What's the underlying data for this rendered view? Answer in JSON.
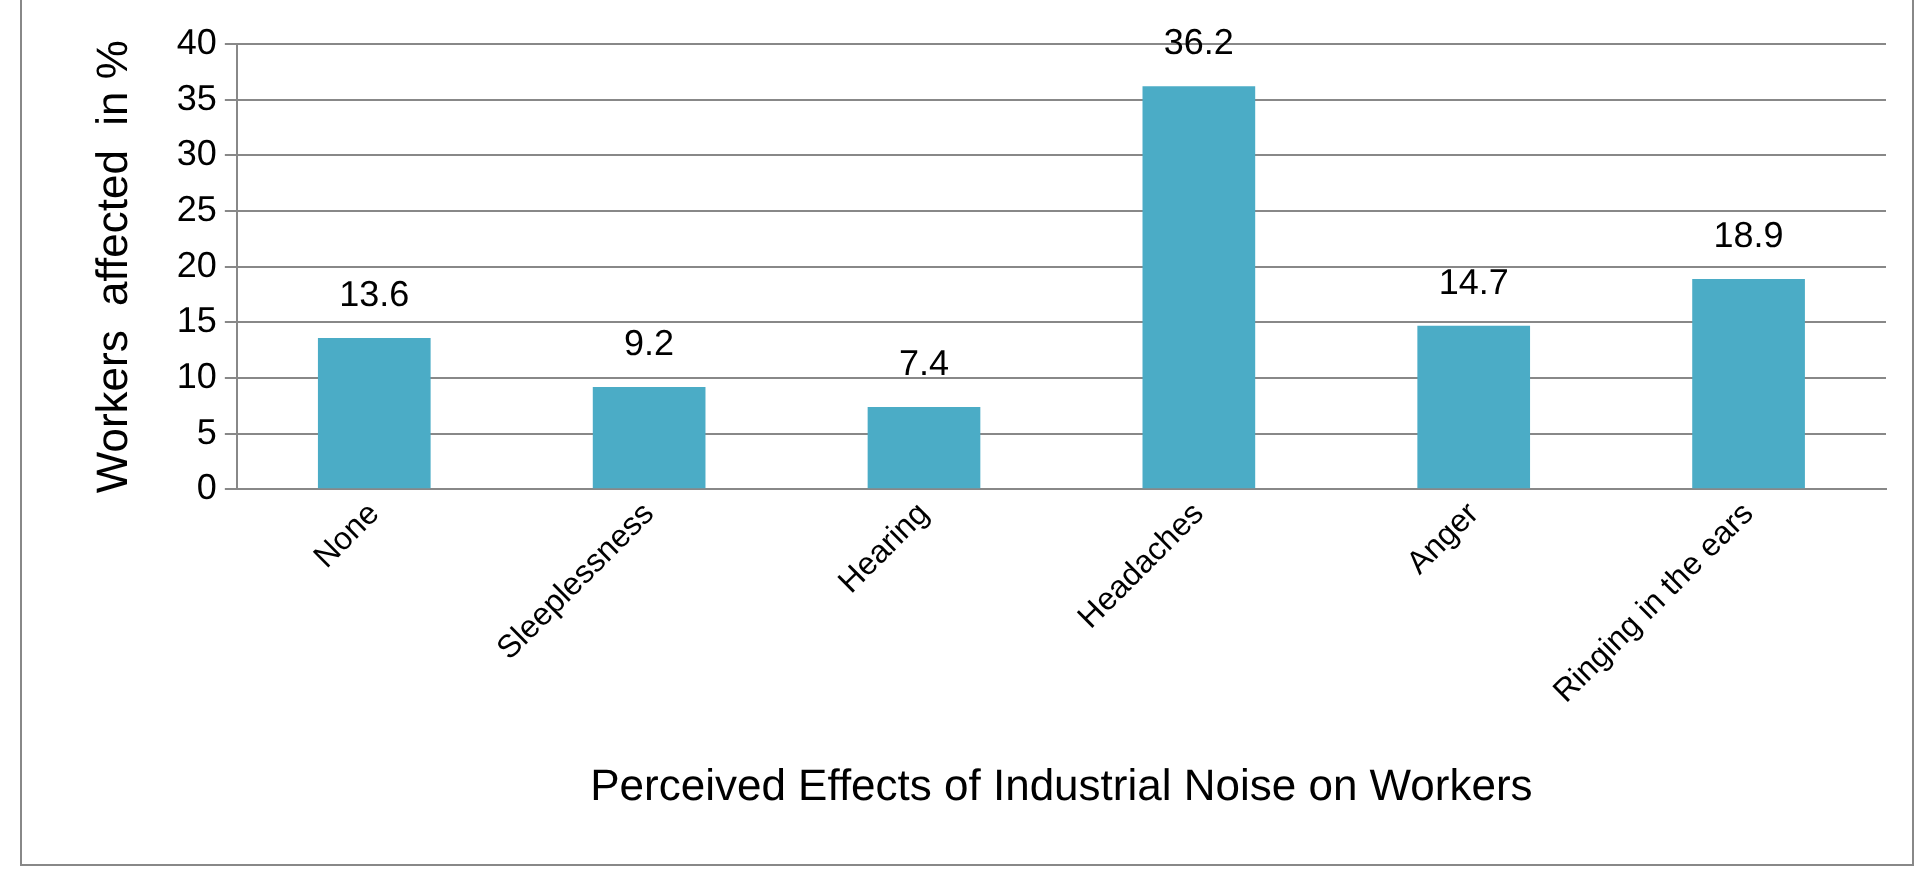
{
  "chart_data": {
    "type": "bar",
    "xlabel": "Perceived Effects of Industrial Noise on Workers",
    "ylabel": "Workers  affected  in %",
    "categories": [
      "None",
      "Sleeplessness",
      "Hearing",
      "Headaches",
      "Anger",
      "Ringing in the ears"
    ],
    "values": [
      13.6,
      9.2,
      7.4,
      36.2,
      14.7,
      18.9
    ],
    "color": "#4bacc6",
    "ylim": [
      0,
      40
    ],
    "yticks": [
      0,
      5,
      10,
      15,
      20,
      25,
      30,
      35,
      40
    ],
    "grid": "y",
    "data_labels": true,
    "legend": false
  }
}
